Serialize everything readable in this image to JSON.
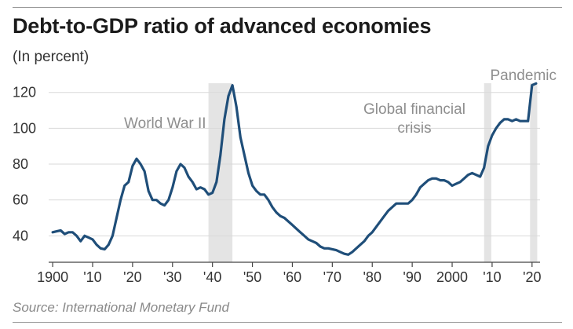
{
  "chart_data": {
    "type": "line",
    "title": "Debt-to-GDP ratio of advanced economies",
    "subtitle": "(In percent)",
    "source": "Source: International Monetary Fund",
    "xlabel": "",
    "ylabel": "",
    "xlim": [
      1899,
      2022
    ],
    "ylim": [
      27,
      126
    ],
    "y_ticks": [
      40,
      60,
      80,
      100,
      120
    ],
    "x_ticks": [
      {
        "value": 1900,
        "label": "1900"
      },
      {
        "value": 1910,
        "label": "'10"
      },
      {
        "value": 1920,
        "label": "'20"
      },
      {
        "value": 1930,
        "label": "'30"
      },
      {
        "value": 1940,
        "label": "'40"
      },
      {
        "value": 1950,
        "label": "'50"
      },
      {
        "value": 1960,
        "label": "'60"
      },
      {
        "value": 1970,
        "label": "'70"
      },
      {
        "value": 1980,
        "label": "'80"
      },
      {
        "value": 1990,
        "label": "'90"
      },
      {
        "value": 2000,
        "label": "2000"
      },
      {
        "value": 2010,
        "label": "'10"
      },
      {
        "value": 2020,
        "label": "'20"
      }
    ],
    "grid": "horizontal",
    "legend": "none",
    "line_color": "#1f4e79",
    "band_color": "#e4e4e4",
    "shaded_periods": [
      {
        "label": "World War II",
        "start": 1939,
        "end": 1945
      },
      {
        "label": "Global financial crisis",
        "start": 2008,
        "end": 2009.8
      },
      {
        "label": "Pandemic",
        "start": 2019.5,
        "end": 2021.3
      }
    ],
    "series": [
      {
        "x": [
          1900,
          1901,
          1902,
          1903,
          1904,
          1905,
          1906,
          1907,
          1908,
          1909,
          1910,
          1911,
          1912,
          1913,
          1914,
          1915,
          1916,
          1917,
          1918,
          1919,
          1920,
          1921,
          1922,
          1923,
          1924,
          1925,
          1926,
          1927,
          1928,
          1929,
          1930,
          1931,
          1932,
          1933,
          1934,
          1935,
          1936,
          1937,
          1938,
          1939,
          1940,
          1941,
          1942,
          1943,
          1944,
          1945,
          1946,
          1947,
          1948,
          1949,
          1950,
          1951,
          1952,
          1953,
          1954,
          1955,
          1956,
          1957,
          1958,
          1959,
          1960,
          1961,
          1962,
          1963,
          1964,
          1965,
          1966,
          1967,
          1968,
          1969,
          1970,
          1971,
          1972,
          1973,
          1974,
          1975,
          1976,
          1977,
          1978,
          1979,
          1980,
          1981,
          1982,
          1983,
          1984,
          1985,
          1986,
          1987,
          1988,
          1989,
          1990,
          1991,
          1992,
          1993,
          1994,
          1995,
          1996,
          1997,
          1998,
          1999,
          2000,
          2001,
          2002,
          2003,
          2004,
          2005,
          2006,
          2007,
          2008,
          2009,
          2010,
          2011,
          2012,
          2013,
          2014,
          2015,
          2016,
          2017,
          2018,
          2019,
          2020,
          2021
        ],
        "values": [
          42,
          42.5,
          43,
          41,
          42,
          42,
          40,
          37,
          40,
          39,
          38,
          35,
          33,
          32.5,
          35,
          40,
          50,
          60,
          68,
          70,
          79,
          83,
          80,
          76,
          65,
          60,
          60,
          58,
          57,
          60,
          67,
          76,
          80,
          78,
          73,
          70,
          66,
          67,
          66,
          63,
          64,
          70,
          85,
          105,
          118,
          124,
          112,
          95,
          85,
          75,
          68,
          65,
          63,
          63,
          60,
          56,
          53,
          51,
          50,
          48,
          46,
          44,
          42,
          40,
          38,
          37,
          36,
          34,
          33,
          33,
          32.5,
          32,
          31,
          30,
          29.5,
          31,
          33,
          35,
          37,
          40,
          42,
          45,
          48,
          51,
          54,
          56,
          58,
          58,
          58,
          58,
          60,
          63,
          67,
          69,
          71,
          72,
          72,
          71,
          71,
          70,
          68,
          69,
          70,
          72,
          74,
          75,
          74,
          73,
          78,
          90,
          96,
          100,
          103,
          105,
          105,
          104,
          105,
          104,
          104,
          104,
          124,
          125
        ]
      }
    ]
  }
}
